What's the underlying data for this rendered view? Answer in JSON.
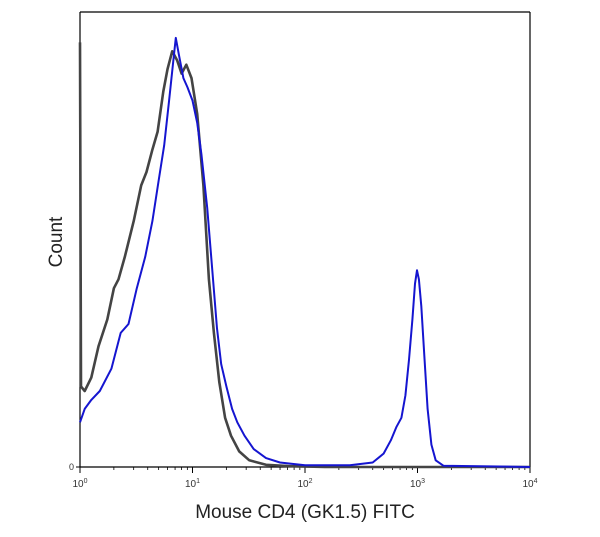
{
  "chart_data": {
    "type": "line",
    "title": "",
    "xlabel": "Mouse CD4 (GK1.5) FITC",
    "ylabel": "Count",
    "xscale": "log",
    "xlim": [
      1,
      10000
    ],
    "ylim": [
      0,
      1
    ],
    "grid": false,
    "legend": "none",
    "x_ticks": [
      {
        "value": 1,
        "base": "10",
        "exp": "0"
      },
      {
        "value": 10,
        "base": "10",
        "exp": "1"
      },
      {
        "value": 100,
        "base": "10",
        "exp": "2"
      },
      {
        "value": 1000,
        "base": "10",
        "exp": "3"
      },
      {
        "value": 10000,
        "base": "10",
        "exp": "4"
      }
    ],
    "y_ticks": [
      {
        "value": 0,
        "label": "0"
      }
    ],
    "series": [
      {
        "color": "#444444",
        "points": [
          [
            1.0,
            0.95
          ],
          [
            1.02,
            0.18
          ],
          [
            1.1,
            0.17
          ],
          [
            1.26,
            0.2
          ],
          [
            1.46,
            0.27
          ],
          [
            1.75,
            0.33
          ],
          [
            2.0,
            0.4
          ],
          [
            2.2,
            0.42
          ],
          [
            2.5,
            0.47
          ],
          [
            3.0,
            0.55
          ],
          [
            3.5,
            0.63
          ],
          [
            3.9,
            0.66
          ],
          [
            4.4,
            0.71
          ],
          [
            4.9,
            0.75
          ],
          [
            5.5,
            0.84
          ],
          [
            6.0,
            0.89
          ],
          [
            6.6,
            0.93
          ],
          [
            7.3,
            0.91
          ],
          [
            8.0,
            0.88
          ],
          [
            8.8,
            0.9
          ],
          [
            9.8,
            0.87
          ],
          [
            11.0,
            0.79
          ],
          [
            12.5,
            0.63
          ],
          [
            14.0,
            0.42
          ],
          [
            15.5,
            0.3
          ],
          [
            17.3,
            0.19
          ],
          [
            19.5,
            0.11
          ],
          [
            22.0,
            0.07
          ],
          [
            26.0,
            0.035
          ],
          [
            32.0,
            0.015
          ],
          [
            45.0,
            0.005
          ],
          [
            70.0,
            0.002
          ],
          [
            150.0,
            0.0
          ],
          [
            10000.0,
            0.0
          ]
        ]
      },
      {
        "color": "#1515d0",
        "points": [
          [
            1.0,
            0.1
          ],
          [
            1.1,
            0.13
          ],
          [
            1.26,
            0.15
          ],
          [
            1.5,
            0.17
          ],
          [
            1.9,
            0.22
          ],
          [
            2.3,
            0.3
          ],
          [
            2.7,
            0.32
          ],
          [
            3.2,
            0.4
          ],
          [
            3.8,
            0.47
          ],
          [
            4.4,
            0.55
          ],
          [
            5.0,
            0.64
          ],
          [
            5.6,
            0.72
          ],
          [
            6.2,
            0.82
          ],
          [
            6.7,
            0.9
          ],
          [
            7.1,
            0.96
          ],
          [
            7.6,
            0.92
          ],
          [
            8.3,
            0.87
          ],
          [
            9.0,
            0.85
          ],
          [
            10.0,
            0.82
          ],
          [
            11.0,
            0.77
          ],
          [
            12.0,
            0.7
          ],
          [
            13.5,
            0.58
          ],
          [
            15.0,
            0.44
          ],
          [
            16.5,
            0.31
          ],
          [
            18.0,
            0.23
          ],
          [
            20.0,
            0.18
          ],
          [
            22.5,
            0.13
          ],
          [
            25.0,
            0.1
          ],
          [
            29.0,
            0.07
          ],
          [
            35.0,
            0.04
          ],
          [
            45.0,
            0.02
          ],
          [
            60.0,
            0.01
          ],
          [
            100.0,
            0.004
          ],
          [
            250.0,
            0.004
          ],
          [
            400.0,
            0.01
          ],
          [
            500.0,
            0.03
          ],
          [
            580.0,
            0.06
          ],
          [
            650.0,
            0.09
          ],
          [
            720.0,
            0.11
          ],
          [
            780.0,
            0.16
          ],
          [
            840.0,
            0.24
          ],
          [
            900.0,
            0.33
          ],
          [
            950.0,
            0.41
          ],
          [
            990.0,
            0.44
          ],
          [
            1030.0,
            0.42
          ],
          [
            1080.0,
            0.36
          ],
          [
            1150.0,
            0.25
          ],
          [
            1230.0,
            0.13
          ],
          [
            1330.0,
            0.05
          ],
          [
            1450.0,
            0.015
          ],
          [
            1700.0,
            0.003
          ],
          [
            10000.0,
            0.0
          ]
        ]
      }
    ]
  }
}
